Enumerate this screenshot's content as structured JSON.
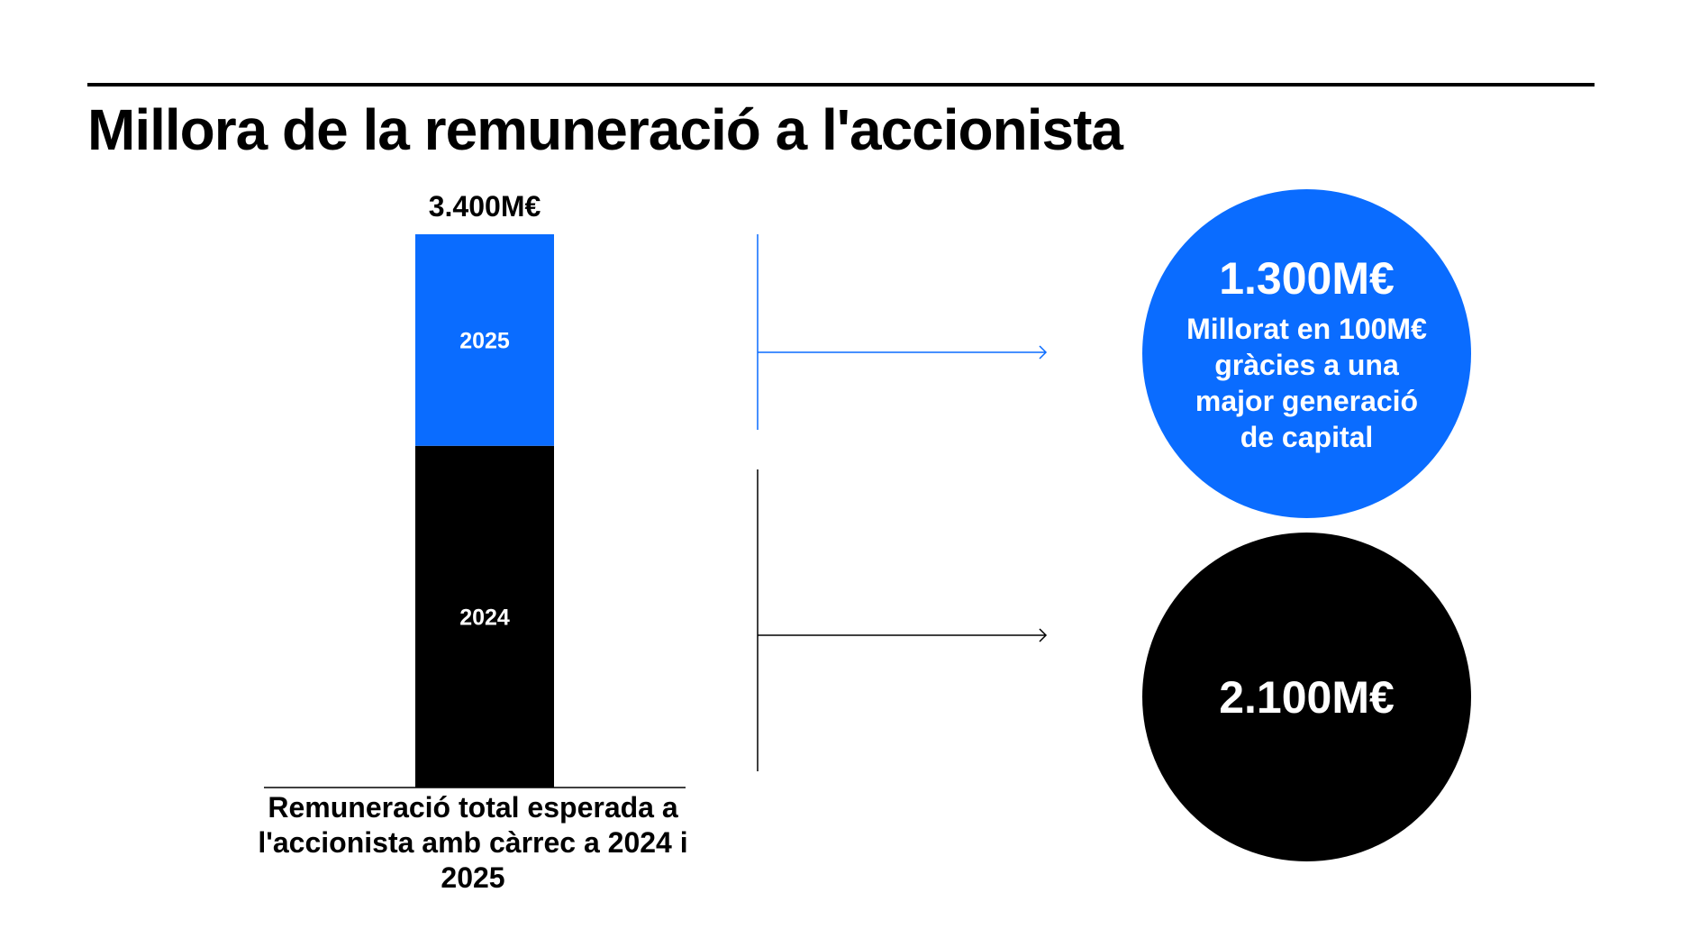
{
  "header": {
    "title": "Millora de la remuneració a l'accionista"
  },
  "chart_data": {
    "type": "bar",
    "stacked": true,
    "categories": [
      "Remuneració total esperada a l'accionista amb càrrec a 2024 i 2025"
    ],
    "series": [
      {
        "name": "2024",
        "values": [
          2100
        ],
        "color": "#000000"
      },
      {
        "name": "2025",
        "values": [
          1300
        ],
        "color": "#0a6cff"
      }
    ],
    "total_label": "3.400M€",
    "total": 3400,
    "xlabel": "Remuneració total esperada a l'accionista amb càrrec a 2024 i 2025",
    "ylabel": "",
    "grid": false
  },
  "callouts": {
    "blue": {
      "value": "1.300M€",
      "note": "Millorat en 100M€ gràcies a una major generació de capital",
      "color": "#0a6cff"
    },
    "black": {
      "value": "2.100M€",
      "color": "#000000"
    }
  }
}
